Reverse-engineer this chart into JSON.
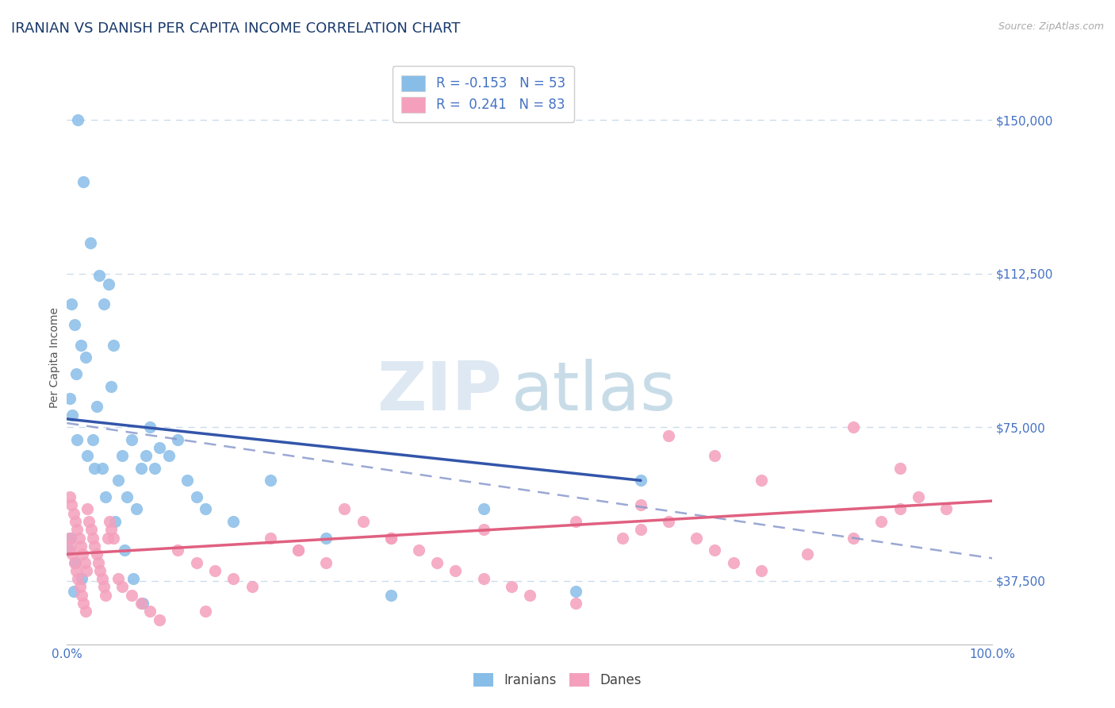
{
  "title": "IRANIAN VS DANISH PER CAPITA INCOME CORRELATION CHART",
  "source_text": "Source: ZipAtlas.com",
  "ylabel": "Per Capita Income",
  "watermark_zip": "ZIP",
  "watermark_atlas": "atlas",
  "xlim": [
    0.0,
    100.0
  ],
  "ylim": [
    22000,
    162000
  ],
  "yticks": [
    37500,
    75000,
    112500,
    150000
  ],
  "ytick_labels": [
    "$37,500",
    "$75,000",
    "$112,500",
    "$150,000"
  ],
  "xtick_labels": [
    "0.0%",
    "100.0%"
  ],
  "legend_line1": "R = -0.153   N = 53",
  "legend_line2": "R =  0.241   N = 83",
  "iranians_color": "#88bde8",
  "danes_color": "#f4a0bc",
  "reg_line_iranian_color": "#3355aa",
  "reg_line_danes_color": "#e06080",
  "dashed_line_color": "#8899cc",
  "title_color": "#1a3a6c",
  "axis_color": "#4472c4",
  "grid_color": "#c8d8ec",
  "background_color": "#ffffff",
  "title_fontsize": 13,
  "axis_label_fontsize": 10,
  "tick_fontsize": 11,
  "legend_fontsize": 12,
  "iranians_x": [
    1.2,
    1.8,
    2.5,
    0.5,
    0.8,
    1.5,
    2.0,
    3.5,
    4.0,
    1.0,
    0.3,
    0.6,
    1.1,
    2.2,
    3.0,
    4.5,
    5.0,
    6.0,
    7.0,
    8.0,
    9.0,
    10.0,
    11.0,
    12.0,
    13.0,
    14.0,
    3.2,
    4.8,
    5.5,
    6.5,
    7.5,
    8.5,
    9.5,
    0.4,
    0.9,
    1.6,
    2.8,
    3.8,
    4.2,
    5.2,
    6.2,
    7.2,
    8.2,
    15.0,
    18.0,
    22.0,
    28.0,
    35.0,
    45.0,
    55.0,
    62.0,
    0.2,
    0.7
  ],
  "iranians_y": [
    150000,
    135000,
    120000,
    105000,
    100000,
    95000,
    92000,
    112000,
    105000,
    88000,
    82000,
    78000,
    72000,
    68000,
    65000,
    110000,
    95000,
    68000,
    72000,
    65000,
    75000,
    70000,
    68000,
    72000,
    62000,
    58000,
    80000,
    85000,
    62000,
    58000,
    55000,
    68000,
    65000,
    48000,
    42000,
    38000,
    72000,
    65000,
    58000,
    52000,
    45000,
    38000,
    32000,
    55000,
    52000,
    62000,
    48000,
    34000,
    55000,
    35000,
    62000,
    45000,
    35000
  ],
  "danes_x": [
    0.2,
    0.4,
    0.6,
    0.8,
    1.0,
    1.2,
    1.4,
    1.6,
    1.8,
    2.0,
    2.2,
    2.4,
    2.6,
    2.8,
    3.0,
    3.2,
    3.4,
    3.6,
    3.8,
    4.0,
    4.2,
    4.4,
    4.6,
    4.8,
    5.0,
    0.3,
    0.5,
    0.7,
    0.9,
    1.1,
    1.3,
    1.5,
    1.7,
    1.9,
    2.1,
    5.5,
    6.0,
    7.0,
    8.0,
    9.0,
    10.0,
    12.0,
    14.0,
    16.0,
    18.0,
    20.0,
    22.0,
    25.0,
    28.0,
    30.0,
    32.0,
    35.0,
    38.0,
    40.0,
    42.0,
    45.0,
    48.0,
    50.0,
    55.0,
    60.0,
    62.0,
    65.0,
    68.0,
    70.0,
    72.0,
    75.0,
    80.0,
    85.0,
    88.0,
    90.0,
    92.0,
    95.0,
    65.0,
    70.0,
    75.0,
    85.0,
    90.0,
    62.0,
    55.0,
    45.0,
    35.0,
    25.0,
    15.0
  ],
  "danes_y": [
    48000,
    46000,
    44000,
    42000,
    40000,
    38000,
    36000,
    34000,
    32000,
    30000,
    55000,
    52000,
    50000,
    48000,
    46000,
    44000,
    42000,
    40000,
    38000,
    36000,
    34000,
    48000,
    52000,
    50000,
    48000,
    58000,
    56000,
    54000,
    52000,
    50000,
    48000,
    46000,
    44000,
    42000,
    40000,
    38000,
    36000,
    34000,
    32000,
    30000,
    28000,
    45000,
    42000,
    40000,
    38000,
    36000,
    48000,
    45000,
    42000,
    55000,
    52000,
    48000,
    45000,
    42000,
    40000,
    38000,
    36000,
    34000,
    32000,
    48000,
    50000,
    52000,
    48000,
    45000,
    42000,
    40000,
    44000,
    48000,
    52000,
    55000,
    58000,
    55000,
    73000,
    68000,
    62000,
    75000,
    65000,
    56000,
    52000,
    50000,
    48000,
    45000,
    30000
  ],
  "ir_reg_x0": 0,
  "ir_reg_y0": 77000,
  "ir_reg_x1": 62,
  "ir_reg_y1": 62000,
  "da_reg_x0": 0,
  "da_reg_y0": 44000,
  "da_reg_x1": 100,
  "da_reg_y1": 57000,
  "dash_x0": 0,
  "dash_y0": 76000,
  "dash_x1": 100,
  "dash_y1": 43000
}
